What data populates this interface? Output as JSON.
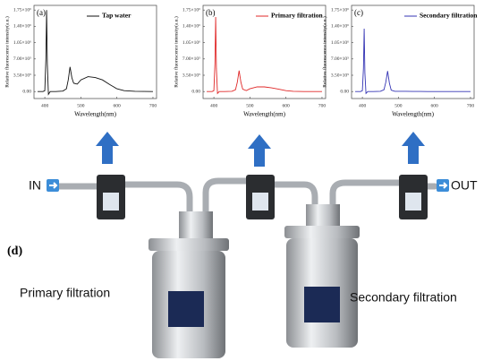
{
  "chart_data": [
    {
      "type": "line",
      "label": "(a)",
      "x_label": "Wavelength(nm)",
      "y_label": "Relative fluorescence intensity(a.u.)",
      "x": [
        380,
        395,
        400,
        403,
        405,
        407,
        410,
        415,
        430,
        450,
        460,
        465,
        470,
        475,
        480,
        490,
        500,
        520,
        540,
        560,
        580,
        600,
        620,
        650,
        700
      ],
      "series": [
        {
          "name": "Tap water",
          "color": "#111111",
          "values": [
            0,
            0,
            20000,
            700000,
            1750000,
            600000,
            -60000,
            0,
            0,
            10000,
            60000,
            250000,
            530000,
            300000,
            180000,
            160000,
            250000,
            320000,
            300000,
            250000,
            150000,
            60000,
            20000,
            5000,
            0
          ]
        }
      ],
      "xlim": [
        370,
        710
      ],
      "ylim": [
        -150000,
        1850000
      ],
      "xticks": [
        400,
        500,
        600,
        700
      ],
      "yticks": [
        {
          "value": 0,
          "label": "0.00"
        },
        {
          "value": 350000,
          "label": "3.50×10⁵"
        },
        {
          "value": 700000,
          "label": "7.00×10⁵"
        },
        {
          "value": 1050000,
          "label": "1.05×10⁶"
        },
        {
          "value": 1400000,
          "label": "1.40×10⁶"
        },
        {
          "value": 1750000,
          "label": "1.75×10⁶"
        }
      ]
    },
    {
      "type": "line",
      "label": "(b)",
      "x_label": "Wavelength(nm)",
      "y_label": "Relative fluorescence intensity(a.u.)",
      "x": [
        380,
        395,
        400,
        403,
        405,
        407,
        410,
        415,
        430,
        450,
        460,
        465,
        470,
        475,
        480,
        490,
        500,
        520,
        540,
        560,
        580,
        600,
        620,
        650,
        700
      ],
      "series": [
        {
          "name": "Primary filtration",
          "color": "#e02828",
          "values": [
            0,
            0,
            20000,
            600000,
            1600000,
            500000,
            -40000,
            0,
            0,
            5000,
            40000,
            200000,
            450000,
            200000,
            50000,
            20000,
            60000,
            100000,
            100000,
            80000,
            50000,
            20000,
            5000,
            0,
            0
          ]
        }
      ],
      "xlim": [
        370,
        710
      ],
      "ylim": [
        -150000,
        1850000
      ],
      "xticks": [
        400,
        500,
        600,
        700
      ],
      "yticks": [
        {
          "value": 0,
          "label": "0.00"
        },
        {
          "value": 350000,
          "label": "3.50×10⁵"
        },
        {
          "value": 700000,
          "label": "7.00×10⁵"
        },
        {
          "value": 1050000,
          "label": "1.05×10⁶"
        },
        {
          "value": 1400000,
          "label": "1.40×10⁶"
        },
        {
          "value": 1750000,
          "label": "1.75×10⁶"
        }
      ]
    },
    {
      "type": "line",
      "label": "(c)",
      "x_label": "Wavelength(nm)",
      "y_label": "Relative fluorescence intensity(a.u.)",
      "x": [
        380,
        395,
        400,
        403,
        405,
        407,
        410,
        415,
        430,
        450,
        460,
        465,
        470,
        475,
        480,
        490,
        500,
        520,
        540,
        560,
        580,
        600,
        620,
        650,
        700
      ],
      "series": [
        {
          "name": "Secondary filtration",
          "color": "#3434b4",
          "values": [
            0,
            0,
            20000,
            500000,
            1350000,
            400000,
            -40000,
            0,
            0,
            5000,
            40000,
            200000,
            440000,
            180000,
            30000,
            5000,
            5000,
            5000,
            3000,
            2000,
            0,
            0,
            0,
            0,
            0
          ]
        }
      ],
      "xlim": [
        370,
        710
      ],
      "ylim": [
        -150000,
        1850000
      ],
      "xticks": [
        400,
        500,
        600,
        700
      ],
      "yticks": [
        {
          "value": 0,
          "label": "0.00"
        },
        {
          "value": 350000,
          "label": "3.50×10⁵"
        },
        {
          "value": 700000,
          "label": "7.00×10⁵"
        },
        {
          "value": 1050000,
          "label": "1.05×10⁶"
        },
        {
          "value": 1400000,
          "label": "1.40×10⁶"
        },
        {
          "value": 1750000,
          "label": "1.75×10⁶"
        }
      ]
    }
  ],
  "diagram": {
    "inlet": "IN",
    "outlet": "OUT",
    "panel_label": "(d)",
    "left_label": "Primary filtration",
    "right_label": "Secondary filtration"
  }
}
